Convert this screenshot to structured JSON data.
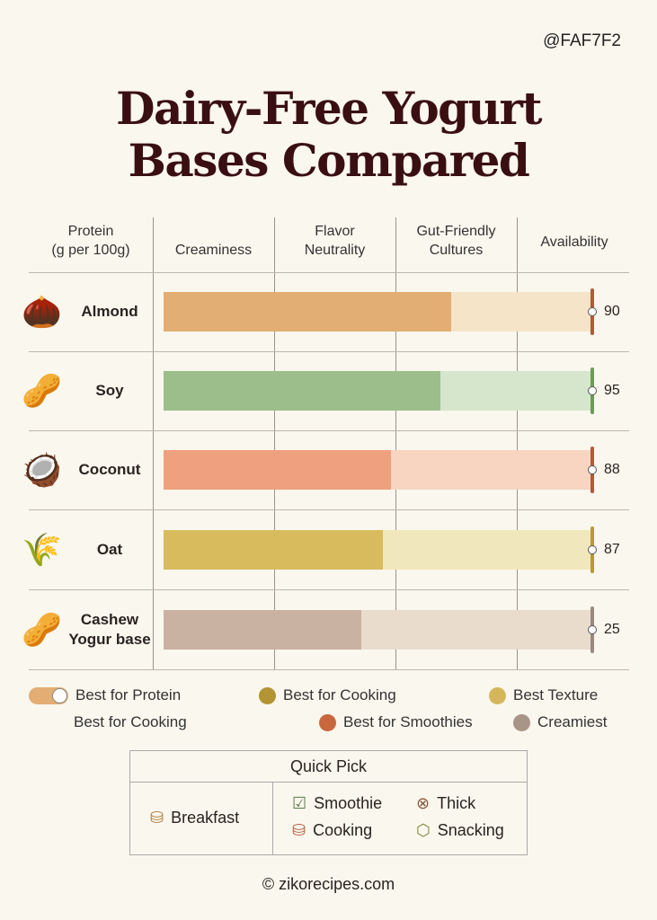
{
  "tag": "@FAF7F2",
  "title_line1": "Dairy-Free Yogurt",
  "title_line2": "Bases Compared",
  "columns": [
    "Protein\n(g per 100g)",
    "Creaminess",
    "Flavor\nNeutrality",
    "Gut-Friendly\nCultures",
    "Availability"
  ],
  "chart_data": {
    "type": "bar",
    "categories": [
      "Almond",
      "Soy",
      "Coconut",
      "Oat",
      "Cashew Yogur base"
    ],
    "values": [
      90,
      95,
      88,
      87,
      25
    ],
    "fill_fraction": [
      0.67,
      0.645,
      0.53,
      0.51,
      0.46
    ],
    "colors": [
      "#E3AE73",
      "#9BBE8B",
      "#EFA07E",
      "#D8BB5D",
      "#C9B2A1"
    ],
    "track_colors": [
      "#F5E4C8",
      "#D5E6CD",
      "#F7D5C1",
      "#F1E7BD",
      "#E9DCCD"
    ],
    "marker_colors": [
      "#B4583A",
      "#6C9C58",
      "#B4583A",
      "#B99A2E",
      "#9A8980"
    ],
    "grid": true
  },
  "legend": [
    {
      "label": "Best for Protein",
      "color": "#E3AE73",
      "kind": "toggle"
    },
    {
      "label": "Best for Cooking",
      "color": "#B39433"
    },
    {
      "label": "Best Texture",
      "color": "#D4B75C"
    },
    {
      "label": "Best for Cooking",
      "color": ""
    },
    {
      "label": "Best for Smoothies",
      "color": "#C9683F"
    },
    {
      "label": "Creamiest",
      "color": "#A99488"
    }
  ],
  "quick_pick": {
    "title": "Quick Pick",
    "left": {
      "label": "Breakfast",
      "icon": "jar-icon"
    },
    "items": [
      {
        "label": "Smoothie",
        "icon": "check-shield-icon"
      },
      {
        "label": "Thick",
        "icon": "circle-x-icon"
      },
      {
        "label": "Cooking",
        "icon": "jar-icon"
      },
      {
        "label": "Snacking",
        "icon": "box-icon"
      }
    ]
  },
  "footer": "© zikorecipes.com"
}
